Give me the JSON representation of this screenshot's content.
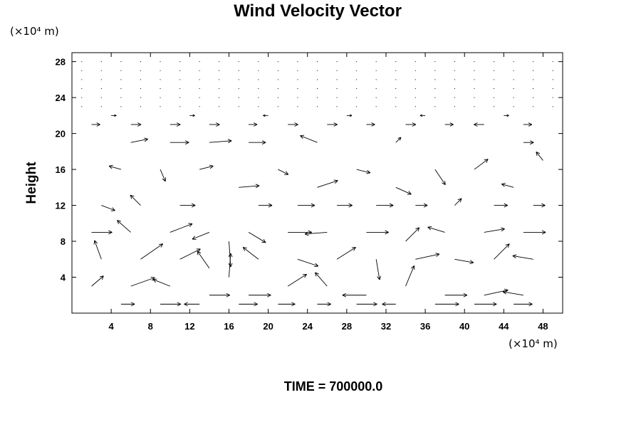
{
  "chart_data": {
    "type": "vector-field",
    "title": "Wind Velocity Vector",
    "xunit": "(×10⁴ m)",
    "yunit": "(×10⁴ m)",
    "xlabel": "",
    "ylabel": "Height",
    "xlim": [
      0,
      50
    ],
    "ylim": [
      0,
      29
    ],
    "xticks": [
      4,
      8,
      12,
      16,
      20,
      24,
      28,
      32,
      36,
      40,
      44,
      48
    ],
    "yticks": [
      4,
      8,
      12,
      16,
      20,
      24,
      28
    ],
    "grid": false,
    "vectors": [
      {
        "x": 2,
        "y": 21,
        "u": 1.0,
        "v": 0
      },
      {
        "x": 6,
        "y": 21,
        "u": 1.2,
        "v": 0
      },
      {
        "x": 10,
        "y": 21,
        "u": 1.2,
        "v": 0
      },
      {
        "x": 14,
        "y": 21,
        "u": 1.2,
        "v": 0
      },
      {
        "x": 18,
        "y": 21,
        "u": 1.0,
        "v": 0
      },
      {
        "x": 22,
        "y": 21,
        "u": 1.2,
        "v": 0
      },
      {
        "x": 26,
        "y": 21,
        "u": 1.2,
        "v": 0
      },
      {
        "x": 30,
        "y": 21,
        "u": 1.0,
        "v": 0
      },
      {
        "x": 34,
        "y": 21,
        "u": 1.2,
        "v": 0
      },
      {
        "x": 38,
        "y": 21,
        "u": 1.0,
        "v": 0
      },
      {
        "x": 42,
        "y": 21,
        "u": -1.2,
        "v": 0
      },
      {
        "x": 46,
        "y": 21,
        "u": 1.0,
        "v": 0
      },
      {
        "x": 4,
        "y": 22,
        "u": 0.6,
        "v": 0
      },
      {
        "x": 12,
        "y": 22,
        "u": 0.6,
        "v": 0
      },
      {
        "x": 20,
        "y": 22,
        "u": -0.6,
        "v": 0
      },
      {
        "x": 28,
        "y": 22,
        "u": 0.6,
        "v": 0
      },
      {
        "x": 36,
        "y": 22,
        "u": -0.6,
        "v": 0
      },
      {
        "x": 44,
        "y": 22,
        "u": 0.6,
        "v": 0
      },
      {
        "x": 6,
        "y": 19,
        "u": 2.0,
        "v": 0.4
      },
      {
        "x": 10,
        "y": 19,
        "u": 2.2,
        "v": 0
      },
      {
        "x": 14,
        "y": 19,
        "u": 2.6,
        "v": 0.2
      },
      {
        "x": 18,
        "y": 19,
        "u": 2.0,
        "v": 0
      },
      {
        "x": 25,
        "y": 19,
        "u": -2.0,
        "v": 0.8
      },
      {
        "x": 33,
        "y": 19,
        "u": 0.6,
        "v": 0.6
      },
      {
        "x": 46,
        "y": 19,
        "u": 1.2,
        "v": 0
      },
      {
        "x": 5,
        "y": 16,
        "u": -1.4,
        "v": 0.4
      },
      {
        "x": 9,
        "y": 16,
        "u": 0.6,
        "v": -1.4
      },
      {
        "x": 13,
        "y": 16,
        "u": 1.6,
        "v": 0.4
      },
      {
        "x": 17,
        "y": 14,
        "u": 2.4,
        "v": 0.2
      },
      {
        "x": 21,
        "y": 16,
        "u": 1.2,
        "v": -0.6
      },
      {
        "x": 25,
        "y": 14,
        "u": 2.4,
        "v": 0.8
      },
      {
        "x": 29,
        "y": 16,
        "u": 1.6,
        "v": -0.4
      },
      {
        "x": 33,
        "y": 14,
        "u": 1.8,
        "v": -0.8
      },
      {
        "x": 37,
        "y": 16,
        "u": 1.2,
        "v": -1.8
      },
      {
        "x": 41,
        "y": 16,
        "u": 1.6,
        "v": 1.2
      },
      {
        "x": 45,
        "y": 14,
        "u": -1.4,
        "v": 0.4
      },
      {
        "x": 48,
        "y": 17,
        "u": -0.8,
        "v": 1.0
      },
      {
        "x": 3,
        "y": 12,
        "u": 1.6,
        "v": -0.6
      },
      {
        "x": 7,
        "y": 12,
        "u": -1.2,
        "v": 1.2
      },
      {
        "x": 11,
        "y": 12,
        "u": 1.8,
        "v": 0
      },
      {
        "x": 19,
        "y": 12,
        "u": 1.6,
        "v": 0
      },
      {
        "x": 23,
        "y": 12,
        "u": 2.0,
        "v": 0
      },
      {
        "x": 27,
        "y": 12,
        "u": 1.8,
        "v": 0
      },
      {
        "x": 31,
        "y": 12,
        "u": 2.0,
        "v": 0
      },
      {
        "x": 35,
        "y": 12,
        "u": 1.4,
        "v": 0
      },
      {
        "x": 39,
        "y": 12,
        "u": 0.8,
        "v": 0.8
      },
      {
        "x": 43,
        "y": 12,
        "u": 1.6,
        "v": 0
      },
      {
        "x": 47,
        "y": 12,
        "u": 1.4,
        "v": 0
      },
      {
        "x": 2,
        "y": 9,
        "u": 2.4,
        "v": 0
      },
      {
        "x": 6,
        "y": 9,
        "u": -1.6,
        "v": 1.4
      },
      {
        "x": 10,
        "y": 9,
        "u": 2.6,
        "v": 1.0
      },
      {
        "x": 14,
        "y": 9,
        "u": -2.0,
        "v": -0.8
      },
      {
        "x": 16,
        "y": 8,
        "u": 0.2,
        "v": -3.0
      },
      {
        "x": 18,
        "y": 9,
        "u": 2.0,
        "v": -1.2
      },
      {
        "x": 22,
        "y": 9,
        "u": 2.8,
        "v": 0
      },
      {
        "x": 26,
        "y": 9,
        "u": -2.6,
        "v": -0.2
      },
      {
        "x": 30,
        "y": 9,
        "u": 2.6,
        "v": 0
      },
      {
        "x": 34,
        "y": 8,
        "u": 1.6,
        "v": 1.6
      },
      {
        "x": 38,
        "y": 9,
        "u": -2.0,
        "v": 0.6
      },
      {
        "x": 42,
        "y": 9,
        "u": 2.4,
        "v": 0.4
      },
      {
        "x": 46,
        "y": 9,
        "u": 2.6,
        "v": 0
      },
      {
        "x": 3,
        "y": 6,
        "u": -0.8,
        "v": 2.2
      },
      {
        "x": 7,
        "y": 6,
        "u": 2.6,
        "v": 1.8
      },
      {
        "x": 11,
        "y": 6,
        "u": 2.4,
        "v": 1.2
      },
      {
        "x": 14,
        "y": 5,
        "u": -1.4,
        "v": 2.0
      },
      {
        "x": 16,
        "y": 4,
        "u": 0.2,
        "v": 2.8
      },
      {
        "x": 19,
        "y": 6,
        "u": -1.8,
        "v": 1.4
      },
      {
        "x": 23,
        "y": 6,
        "u": 2.4,
        "v": -0.8
      },
      {
        "x": 27,
        "y": 6,
        "u": 2.2,
        "v": 1.4
      },
      {
        "x": 31,
        "y": 6,
        "u": 0.4,
        "v": -2.4
      },
      {
        "x": 35,
        "y": 6,
        "u": 2.8,
        "v": 0.6
      },
      {
        "x": 39,
        "y": 6,
        "u": 2.2,
        "v": -0.4
      },
      {
        "x": 43,
        "y": 6,
        "u": 1.8,
        "v": 1.8
      },
      {
        "x": 47,
        "y": 6,
        "u": -2.4,
        "v": 0.4
      },
      {
        "x": 2,
        "y": 3,
        "u": 1.4,
        "v": 1.2
      },
      {
        "x": 6,
        "y": 3,
        "u": 2.8,
        "v": 1.0
      },
      {
        "x": 10,
        "y": 3,
        "u": -2.0,
        "v": 0.8
      },
      {
        "x": 14,
        "y": 2,
        "u": 2.4,
        "v": 0
      },
      {
        "x": 18,
        "y": 2,
        "u": 2.6,
        "v": 0
      },
      {
        "x": 22,
        "y": 3,
        "u": 2.2,
        "v": 1.4
      },
      {
        "x": 26,
        "y": 3,
        "u": -1.4,
        "v": 1.6
      },
      {
        "x": 30,
        "y": 2,
        "u": -2.8,
        "v": 0
      },
      {
        "x": 34,
        "y": 3,
        "u": 1.0,
        "v": 2.4
      },
      {
        "x": 38,
        "y": 2,
        "u": 2.6,
        "v": 0
      },
      {
        "x": 42,
        "y": 2,
        "u": 2.8,
        "v": 0.6
      },
      {
        "x": 46,
        "y": 2,
        "u": -2.4,
        "v": 0.4
      },
      {
        "x": 5,
        "y": 1,
        "u": 1.6,
        "v": 0
      },
      {
        "x": 9,
        "y": 1,
        "u": 2.4,
        "v": 0
      },
      {
        "x": 13,
        "y": 1,
        "u": -1.8,
        "v": 0
      },
      {
        "x": 17,
        "y": 1,
        "u": 2.2,
        "v": 0
      },
      {
        "x": 21,
        "y": 1,
        "u": 2.0,
        "v": 0
      },
      {
        "x": 25,
        "y": 1,
        "u": 1.6,
        "v": 0
      },
      {
        "x": 29,
        "y": 1,
        "u": 2.4,
        "v": 0
      },
      {
        "x": 33,
        "y": 1,
        "u": -1.6,
        "v": 0
      },
      {
        "x": 37,
        "y": 1,
        "u": 2.8,
        "v": 0
      },
      {
        "x": 41,
        "y": 1,
        "u": 2.6,
        "v": 0
      },
      {
        "x": 45,
        "y": 1,
        "u": 2.2,
        "v": 0
      }
    ]
  },
  "footer": {
    "time_label": "TIME = 700000.0"
  }
}
